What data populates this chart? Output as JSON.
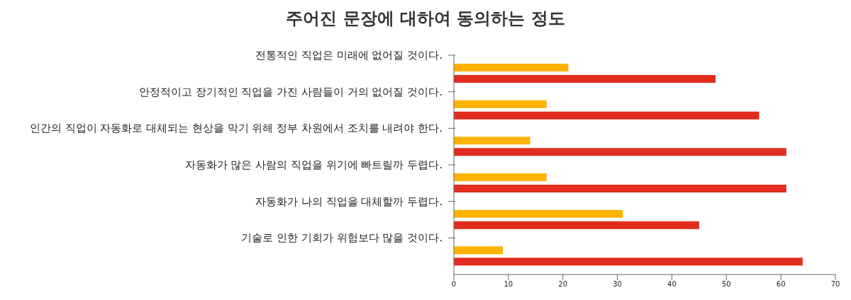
{
  "chart_data": {
    "type": "bar",
    "orientation": "horizontal",
    "title": "주어진 문장에 대하여 동의하는 정도",
    "categories": [
      "전통적인 직업은 미래에 없어질 것이다.",
      "안정적이고 장기적인 직업을 가진 사람들이 거의 없어질 것이다.",
      "인간의 직업이 자동화로 대체되는 현상을 막기 위해 정부 차원에서 조치를 내려야 한다.",
      "자동화가 많은 사람의 직업을 위기에 빠트릴까 두렵다.",
      "자동화가 나의 직업을 대체할까 두렵다.",
      "기술로 인한 기회가 위험보다 많을 것이다."
    ],
    "series": [
      {
        "color": "#ffb300",
        "values": [
          21,
          17,
          14,
          17,
          31,
          9
        ]
      },
      {
        "color": "#e02d1e",
        "values": [
          48,
          56,
          61,
          61,
          45,
          64
        ]
      }
    ],
    "xlim": [
      0,
      70
    ],
    "xticks": [
      0,
      10,
      20,
      30,
      40,
      50,
      60,
      70
    ],
    "grid": false,
    "legend": false
  }
}
